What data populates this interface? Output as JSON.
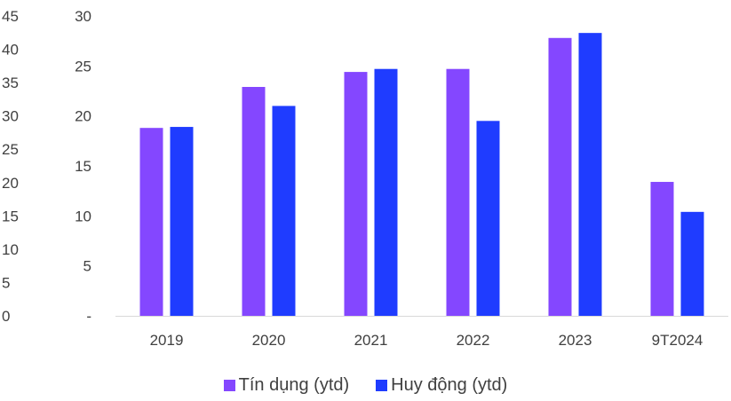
{
  "chart_data": {
    "type": "bar",
    "categories": [
      "2019",
      "2020",
      "2021",
      "2022",
      "2023",
      "9T2024"
    ],
    "series": [
      {
        "name": "Tín dụng (ytd)",
        "color": "#8447FF",
        "values": [
          18.8,
          22.9,
          24.4,
          24.7,
          27.8,
          13.4
        ]
      },
      {
        "name": "Huy động (ytd)",
        "color": "#1F3CFF",
        "values": [
          18.9,
          21.0,
          24.7,
          19.5,
          28.3,
          10.4
        ]
      }
    ],
    "axes": {
      "left_outer": {
        "ticks": [
          "45",
          "40",
          "35",
          "30",
          "25",
          "20",
          "15",
          "10",
          "5",
          "0"
        ],
        "ylim": [
          0,
          45
        ]
      },
      "left_inner": {
        "ticks": [
          "30",
          "25",
          "20",
          "15",
          "10",
          "5",
          "-"
        ],
        "ylim": [
          0,
          30
        ]
      }
    },
    "grid": false,
    "legend_position": "bottom"
  }
}
